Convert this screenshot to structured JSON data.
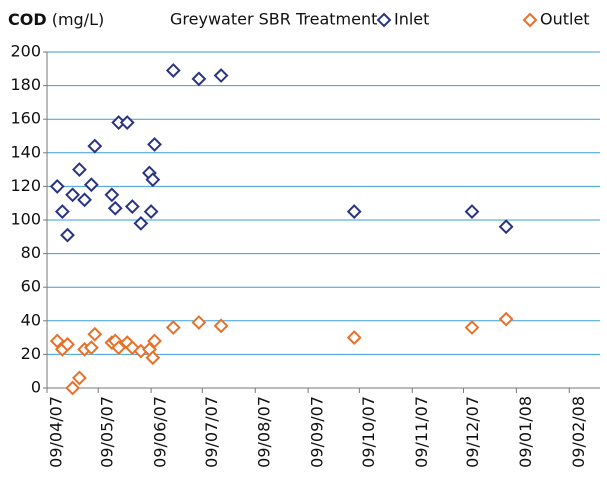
{
  "chart_data": {
    "type": "scatter",
    "ylabel": "COD",
    "yunit": "(mg/L)",
    "title": "Greywater SBR Treatment",
    "x": [
      "2007-04-15",
      "2007-04-18",
      "2007-04-21",
      "2007-04-24",
      "2007-04-28",
      "2007-05-01",
      "2007-05-05",
      "2007-05-07",
      "2007-05-17",
      "2007-05-19",
      "2007-05-21",
      "2007-05-26",
      "2007-05-29",
      "2007-06-03",
      "2007-06-08",
      "2007-06-09",
      "2007-06-10",
      "2007-06-11",
      "2007-06-22",
      "2007-07-07",
      "2007-07-20",
      "2007-10-06",
      "2007-12-14",
      "2008-01-03"
    ],
    "series": [
      {
        "name": "Inlet",
        "color": "#2b3483",
        "values": [
          120,
          105,
          91,
          115,
          130,
          112,
          121,
          144,
          115,
          107,
          158,
          158,
          108,
          98,
          128,
          105,
          124,
          145,
          189,
          184,
          186,
          105,
          105,
          96
        ]
      },
      {
        "name": "Outlet",
        "color": "#e8712a",
        "values": [
          28,
          23,
          26,
          0,
          6,
          23,
          24,
          32,
          27,
          28,
          24,
          27,
          24,
          22,
          23,
          null,
          18,
          28,
          36,
          39,
          37,
          30,
          36,
          41
        ]
      }
    ],
    "xlim": [
      "2007-04-09",
      "2008-02-27"
    ],
    "xticks": [
      {
        "value": "2007-04-09",
        "label": "09/04/07"
      },
      {
        "value": "2007-05-09",
        "label": "09/05/07"
      },
      {
        "value": "2007-06-09",
        "label": "09/06/07"
      },
      {
        "value": "2007-07-09",
        "label": "09/07/07"
      },
      {
        "value": "2007-08-09",
        "label": "09/08/07"
      },
      {
        "value": "2007-09-09",
        "label": "09/09/07"
      },
      {
        "value": "2007-10-09",
        "label": "09/10/07"
      },
      {
        "value": "2007-11-09",
        "label": "09/11/07"
      },
      {
        "value": "2007-12-09",
        "label": "09/12/07"
      },
      {
        "value": "2008-01-09",
        "label": "09/01/08"
      },
      {
        "value": "2008-02-09",
        "label": "09/02/08"
      }
    ],
    "ylim": [
      0,
      200
    ],
    "yticks": [
      0,
      20,
      40,
      60,
      80,
      100,
      120,
      140,
      160,
      180,
      200
    ],
    "grid": true
  }
}
